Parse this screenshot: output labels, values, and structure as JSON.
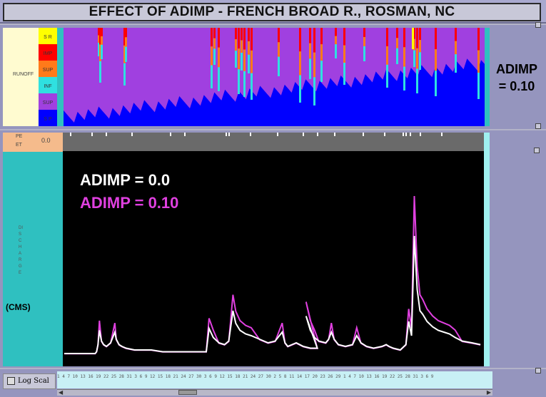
{
  "window": {
    "title": "EFFECT OF ADIMP - FRENCH BROAD R., ROSMAN, NC"
  },
  "runoff_panel": {
    "label": "RUNOFF",
    "legend": [
      {
        "code": "S R",
        "color": "#ffff00"
      },
      {
        "code": "IMP",
        "color": "#ff0000"
      },
      {
        "code": "SUP",
        "color": "#ff7a1a"
      },
      {
        "code": "INF",
        "color": "#2fe0e0"
      },
      {
        "code": "SUP",
        "color": "#a040e0"
      },
      {
        "code": "S P",
        "color": "#0000ff"
      }
    ],
    "side_label_line1": "ADIMP",
    "side_label_line2": "= 0.10"
  },
  "hydro_panel": {
    "pe_label": "PE\nET",
    "pe_value": "0.0",
    "units": "(CMS)",
    "ylabel": "DISCHARGE",
    "legend": [
      {
        "name": "ADIMP = 0.0",
        "color": "#ffffff"
      },
      {
        "name": "ADIMP = 0.10",
        "color": "#e040e0"
      }
    ]
  },
  "bottom": {
    "log_scale_label": "Log Scal",
    "axis_ticks": "1  4  7  10  13  16  19  22  25  28  31  3  6  9  12  15  18  21  24  27  30  3  6  9  12  15  18  21  24  27  30  2  5  8  11  14  17  20  23  26  29  1  4  7  10  13  16  19  22  25  28  31  3  6  9"
  },
  "chart_data": {
    "type": "line",
    "title": "",
    "xlabel": "",
    "ylabel": "(CMS)",
    "series": [
      {
        "name": "ADIMP = 0.0",
        "color": "#ffffff",
        "values": [
          4,
          4,
          4,
          4,
          5,
          9,
          17,
          11,
          9,
          8,
          10,
          16,
          12,
          9,
          8,
          7,
          6,
          6,
          6,
          5,
          5,
          5,
          5,
          5,
          18,
          13,
          10,
          9,
          11,
          28,
          21,
          17,
          15,
          14,
          12,
          10,
          11,
          16,
          10,
          8,
          9,
          10,
          8,
          7,
          7,
          25,
          17,
          13,
          11,
          10,
          12,
          16,
          12,
          9,
          8,
          9,
          14,
          10,
          8,
          7,
          8,
          9,
          8,
          7,
          6,
          9,
          22,
          14,
          70,
          40,
          28,
          26,
          22,
          19,
          17,
          16,
          15,
          13,
          11,
          10,
          9
        ],
        "x": [
          0,
          36,
          42,
          44,
          46,
          48,
          50,
          53,
          56,
          60,
          66,
          72,
          74,
          78,
          82,
          88,
          100,
          110,
          124,
          140,
          160,
          172,
          190,
          202,
          206,
          212,
          220,
          228,
          234,
          240,
          244,
          250,
          258,
          266,
          278,
          290,
          300,
          310,
          314,
          318,
          324,
          330,
          340,
          350,
          360,
          344,
          350,
          356,
          362,
          372,
          376,
          380,
          384,
          390,
          400,
          410,
          416,
          422,
          430,
          440,
          452,
          458,
          462,
          468,
          478,
          486,
          490,
          494,
          498,
          502,
          506,
          510,
          516,
          524,
          532,
          540,
          548,
          556,
          566,
          580,
          592
        ]
      }
    ]
  }
}
